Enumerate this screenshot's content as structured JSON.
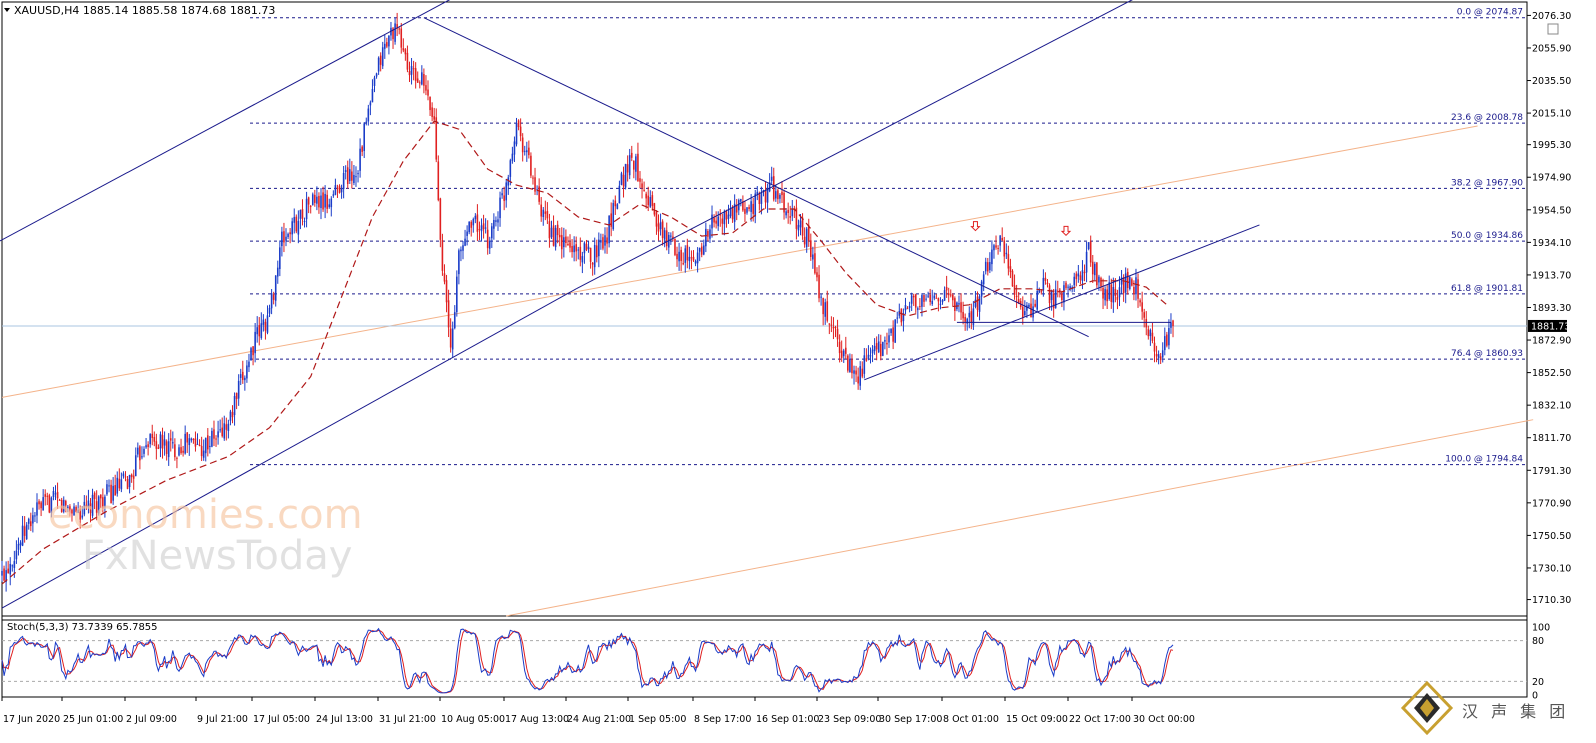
{
  "header": {
    "symbol_line": "XAUUSD,H4  1885.14 1885.58 1874.68 1881.73"
  },
  "stoch_panel": {
    "label": "Stoch(5,3,3) 73.7339 65.7855",
    "axis_labels": [
      "100",
      "80",
      "20",
      "0"
    ]
  },
  "watermark": {
    "line1": "economies.com",
    "line2": "FxNewsToday"
  },
  "logo": {
    "text": "汉 声 集 团"
  },
  "colors": {
    "bull": "#1a3cc8",
    "bear": "#e02020",
    "trend": "#1a1a8c",
    "fib": "#1a1a8c",
    "ma": "#b01818",
    "channel": "#f4b38a",
    "stoch_main": "#1a3cc8",
    "stoch_signal": "#e02020",
    "current_price_line": "#a8c4e0",
    "grid_border": "#000000"
  },
  "chart_data": {
    "type": "candlestick",
    "symbol": "XAUUSD",
    "timeframe": "H4",
    "ohlc_last": {
      "open": 1885.14,
      "high": 1885.58,
      "low": 1874.68,
      "close": 1881.73
    },
    "current_price": 1881.73,
    "current_price_label": "1881.73",
    "ylim": [
      1700,
      2085
    ],
    "y_ticks": [
      2076.3,
      2055.9,
      2035.5,
      2015.1,
      1995.3,
      1974.9,
      1954.5,
      1934.1,
      1913.7,
      1893.3,
      1872.9,
      1852.5,
      1832.1,
      1811.7,
      1791.3,
      1770.9,
      1750.5,
      1730.1,
      1710.3
    ],
    "y_tick_labels": [
      "2076.30",
      "2055.90",
      "2035.50",
      "2015.10",
      "1995.30",
      "1974.90",
      "1954.50",
      "1934.10",
      "1913.70",
      "1893.30",
      "1872.90",
      "1852.50",
      "1832.10",
      "1811.70",
      "1791.30",
      "1770.90",
      "1750.50",
      "1730.10",
      "1710.30"
    ],
    "x_ticks": [
      "17 Jun 2020",
      "25 Jun 01:00",
      "2 Jul 09:00",
      "9 Jul 21:00",
      "17 Jul 05:00",
      "24 Jul 13:00",
      "31 Jul 21:00",
      "10 Aug 05:00",
      "17 Aug 13:00",
      "24 Aug 21:00",
      "1 Sep 05:00",
      "8 Sep 17:00",
      "16 Sep 01:00",
      "23 Sep 09:00",
      "30 Sep 17:00",
      "8 Oct 01:00",
      "15 Oct 09:00",
      "22 Oct 17:00",
      "30 Oct 00:00"
    ],
    "fibonacci": [
      {
        "label": "0.0 @ 2074.87",
        "price": 2074.87
      },
      {
        "label": "23.6 @ 2008.78",
        "price": 2008.78
      },
      {
        "label": "38.2 @ 1967.90",
        "price": 1967.9
      },
      {
        "label": "50.0 @ 1934.86",
        "price": 1934.86
      },
      {
        "label": "61.8 @ 1901.81",
        "price": 1901.81
      },
      {
        "label": "76.4 @ 1860.93",
        "price": 1860.93
      },
      {
        "label": "100.0 @ 1794.84",
        "price": 1794.84
      }
    ],
    "close_path": [
      {
        "t": 0,
        "p": 1725
      },
      {
        "t": 8,
        "p": 1745
      },
      {
        "t": 16,
        "p": 1765
      },
      {
        "t": 24,
        "p": 1772
      },
      {
        "t": 32,
        "p": 1768
      },
      {
        "t": 40,
        "p": 1765
      },
      {
        "t": 48,
        "p": 1773
      },
      {
        "t": 56,
        "p": 1780
      },
      {
        "t": 62,
        "p": 1785
      },
      {
        "t": 70,
        "p": 1812
      },
      {
        "t": 76,
        "p": 1808
      },
      {
        "t": 84,
        "p": 1805
      },
      {
        "t": 90,
        "p": 1810
      },
      {
        "t": 96,
        "p": 1806
      },
      {
        "t": 104,
        "p": 1812
      },
      {
        "t": 110,
        "p": 1820
      },
      {
        "t": 116,
        "p": 1845
      },
      {
        "t": 122,
        "p": 1870
      },
      {
        "t": 130,
        "p": 1890
      },
      {
        "t": 136,
        "p": 1935
      },
      {
        "t": 142,
        "p": 1945
      },
      {
        "t": 150,
        "p": 1960
      },
      {
        "t": 158,
        "p": 1958
      },
      {
        "t": 166,
        "p": 1975
      },
      {
        "t": 172,
        "p": 1978
      },
      {
        "t": 178,
        "p": 2015
      },
      {
        "t": 184,
        "p": 2050
      },
      {
        "t": 190,
        "p": 2068
      },
      {
        "t": 194,
        "p": 2060
      },
      {
        "t": 198,
        "p": 2040
      },
      {
        "t": 204,
        "p": 2035
      },
      {
        "t": 210,
        "p": 2010
      },
      {
        "t": 214,
        "p": 1920
      },
      {
        "t": 218,
        "p": 1866
      },
      {
        "t": 222,
        "p": 1925
      },
      {
        "t": 228,
        "p": 1950
      },
      {
        "t": 236,
        "p": 1935
      },
      {
        "t": 244,
        "p": 1965
      },
      {
        "t": 250,
        "p": 2010
      },
      {
        "t": 256,
        "p": 1985
      },
      {
        "t": 262,
        "p": 1950
      },
      {
        "t": 270,
        "p": 1935
      },
      {
        "t": 278,
        "p": 1930
      },
      {
        "t": 286,
        "p": 1925
      },
      {
        "t": 294,
        "p": 1940
      },
      {
        "t": 300,
        "p": 1970
      },
      {
        "t": 306,
        "p": 1988
      },
      {
        "t": 312,
        "p": 1970
      },
      {
        "t": 320,
        "p": 1940
      },
      {
        "t": 328,
        "p": 1930
      },
      {
        "t": 336,
        "p": 1920
      },
      {
        "t": 344,
        "p": 1945
      },
      {
        "t": 352,
        "p": 1950
      },
      {
        "t": 360,
        "p": 1955
      },
      {
        "t": 368,
        "p": 1960
      },
      {
        "t": 374,
        "p": 1970
      },
      {
        "t": 380,
        "p": 1955
      },
      {
        "t": 386,
        "p": 1948
      },
      {
        "t": 392,
        "p": 1935
      },
      {
        "t": 398,
        "p": 1895
      },
      {
        "t": 404,
        "p": 1880
      },
      {
        "t": 410,
        "p": 1860
      },
      {
        "t": 416,
        "p": 1852
      },
      {
        "t": 422,
        "p": 1862
      },
      {
        "t": 428,
        "p": 1868
      },
      {
        "t": 434,
        "p": 1880
      },
      {
        "t": 440,
        "p": 1895
      },
      {
        "t": 448,
        "p": 1895
      },
      {
        "t": 456,
        "p": 1902
      },
      {
        "t": 462,
        "p": 1898
      },
      {
        "t": 468,
        "p": 1885
      },
      {
        "t": 474,
        "p": 1895
      },
      {
        "t": 480,
        "p": 1925
      },
      {
        "t": 484,
        "p": 1935
      },
      {
        "t": 488,
        "p": 1928
      },
      {
        "t": 494,
        "p": 1895
      },
      {
        "t": 500,
        "p": 1890
      },
      {
        "t": 506,
        "p": 1905
      },
      {
        "t": 512,
        "p": 1898
      },
      {
        "t": 518,
        "p": 1905
      },
      {
        "t": 524,
        "p": 1915
      },
      {
        "t": 528,
        "p": 1928
      },
      {
        "t": 534,
        "p": 1905
      },
      {
        "t": 540,
        "p": 1902
      },
      {
        "t": 546,
        "p": 1910
      },
      {
        "t": 552,
        "p": 1905
      },
      {
        "t": 556,
        "p": 1885
      },
      {
        "t": 560,
        "p": 1865
      },
      {
        "t": 564,
        "p": 1868
      },
      {
        "t": 569,
        "p": 1881.73
      }
    ],
    "ma_path": [
      {
        "t": 0,
        "p": 1720
      },
      {
        "t": 20,
        "p": 1742
      },
      {
        "t": 50,
        "p": 1765
      },
      {
        "t": 80,
        "p": 1785
      },
      {
        "t": 110,
        "p": 1800
      },
      {
        "t": 130,
        "p": 1818
      },
      {
        "t": 150,
        "p": 1850
      },
      {
        "t": 165,
        "p": 1900
      },
      {
        "t": 180,
        "p": 1950
      },
      {
        "t": 195,
        "p": 1985
      },
      {
        "t": 210,
        "p": 2010
      },
      {
        "t": 222,
        "p": 2005
      },
      {
        "t": 236,
        "p": 1980
      },
      {
        "t": 250,
        "p": 1970
      },
      {
        "t": 265,
        "p": 1965
      },
      {
        "t": 280,
        "p": 1950
      },
      {
        "t": 295,
        "p": 1945
      },
      {
        "t": 310,
        "p": 1958
      },
      {
        "t": 325,
        "p": 1950
      },
      {
        "t": 340,
        "p": 1938
      },
      {
        "t": 355,
        "p": 1940
      },
      {
        "t": 370,
        "p": 1955
      },
      {
        "t": 385,
        "p": 1955
      },
      {
        "t": 398,
        "p": 1935
      },
      {
        "t": 410,
        "p": 1915
      },
      {
        "t": 425,
        "p": 1895
      },
      {
        "t": 440,
        "p": 1888
      },
      {
        "t": 455,
        "p": 1893
      },
      {
        "t": 470,
        "p": 1895
      },
      {
        "t": 485,
        "p": 1905
      },
      {
        "t": 500,
        "p": 1905
      },
      {
        "t": 515,
        "p": 1903
      },
      {
        "t": 530,
        "p": 1910
      },
      {
        "t": 545,
        "p": 1910
      },
      {
        "t": 556,
        "p": 1906
      },
      {
        "t": 566,
        "p": 1895
      }
    ],
    "trendlines": [
      {
        "name": "channel-upper",
        "from": {
          "t": -1,
          "p": 1935
        },
        "to": {
          "t": 226,
          "p": 2092
        }
      },
      {
        "name": "channel-lower",
        "from": {
          "t": 0,
          "p": 1705
        },
        "to": {
          "t": 279,
          "p": 1905
        }
      },
      {
        "name": "triangle-upper",
        "from": {
          "t": 205,
          "p": 2074.87
        },
        "to": {
          "t": 528,
          "p": 1875
        }
      },
      {
        "name": "breakout-rising",
        "from": {
          "t": 279,
          "p": 1905
        },
        "to": {
          "t": 558,
          "p": 2092
        }
      },
      {
        "name": "rising-support",
        "from": {
          "t": 419,
          "p": 1848
        },
        "to": {
          "t": 611,
          "p": 1945
        }
      },
      {
        "name": "neckline",
        "from": {
          "t": 464,
          "p": 1884
        },
        "to": {
          "t": 568,
          "p": 1884
        }
      }
    ],
    "channel_lines": [
      {
        "name": "orange-upper",
        "from": {
          "t": 0,
          "p": 1837
        },
        "to": {
          "t": 717,
          "p": 2007
        }
      },
      {
        "name": "orange-lower",
        "from": {
          "t": 245,
          "p": 1700
        },
        "to": {
          "t": 744,
          "p": 1823
        }
      }
    ],
    "arrow_markers": [
      {
        "t": 473,
        "p": 1944
      },
      {
        "t": 517,
        "p": 1941
      }
    ],
    "stochastic": {
      "k_last": 73.7339,
      "d_last": 65.7855,
      "levels": [
        80,
        20
      ],
      "ylim": [
        0,
        100
      ]
    }
  }
}
